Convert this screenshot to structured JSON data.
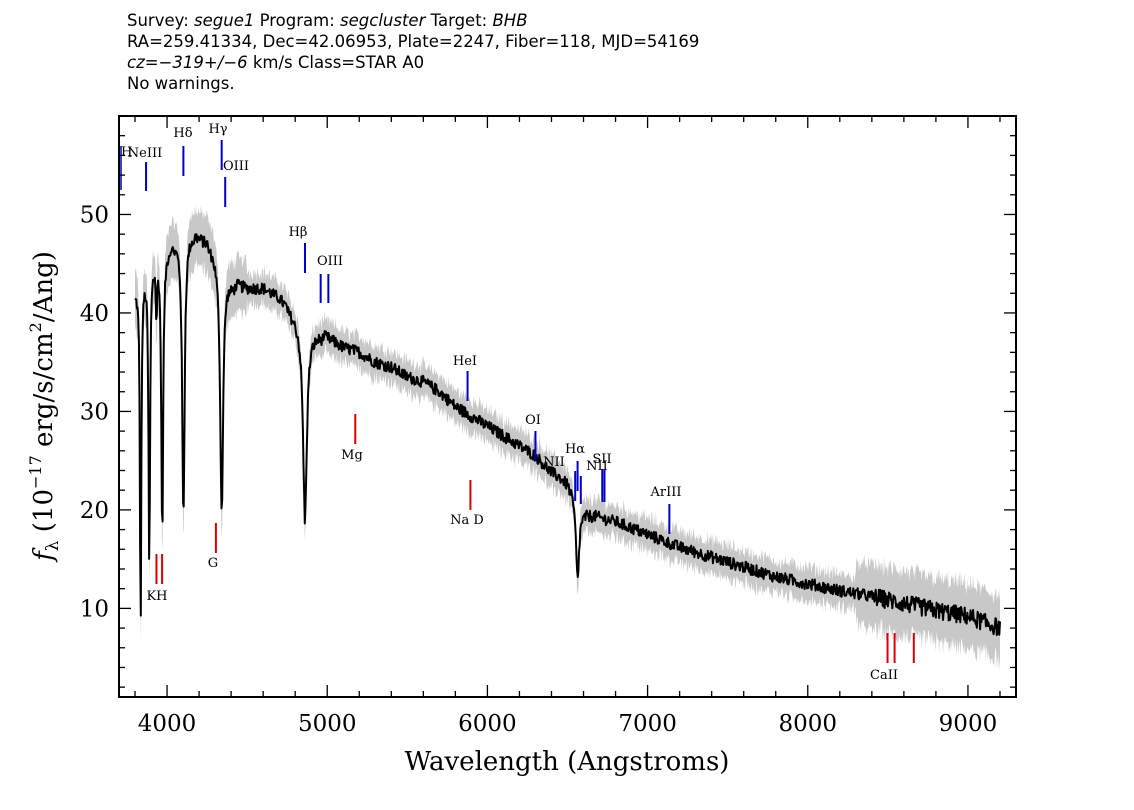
{
  "header": {
    "survey_label": "Survey:",
    "survey": "segue1",
    "program_label": "Program:",
    "program": "segcluster",
    "target_label": "Target:",
    "target": "BHB",
    "line2": "RA=259.41334, Dec=42.06953, Plate=2247, Fiber=118, MJD=54169",
    "cz": "cz=−319+/−6",
    "cz_unit": "km/s",
    "class": "Class=STAR A0",
    "warnings": "No warnings."
  },
  "chart_data": {
    "type": "line",
    "xlabel": "Wavelength (Angstroms)",
    "ylabel": "fλ (10⁻¹⁷ erg/s/cm²/Ang)",
    "xlim": [
      3700,
      9300
    ],
    "ylim": [
      1,
      60
    ],
    "xticks": [
      4000,
      5000,
      6000,
      7000,
      8000,
      9000
    ],
    "yticks": [
      10,
      20,
      30,
      40,
      50
    ],
    "grid": false,
    "legend": "none",
    "colors": {
      "flux": "#000000",
      "error": "#c8c8c8",
      "emission": "#0000cc",
      "absorption": "#dd0000"
    },
    "continuum": [
      [
        3800,
        42
      ],
      [
        3850,
        44
      ],
      [
        3900,
        45.5
      ],
      [
        3950,
        46
      ],
      [
        4000,
        46.5
      ],
      [
        4050,
        47
      ],
      [
        4100,
        48
      ],
      [
        4150,
        48
      ],
      [
        4200,
        47.5
      ],
      [
        4250,
        47
      ],
      [
        4300,
        46
      ],
      [
        4350,
        44.5
      ],
      [
        4400,
        43
      ],
      [
        4500,
        42.5
      ],
      [
        4600,
        42.5
      ],
      [
        4700,
        41.5
      ],
      [
        4800,
        39.5
      ],
      [
        4850,
        38.5
      ],
      [
        4900,
        38
      ],
      [
        5000,
        37.5
      ],
      [
        5100,
        36.5
      ],
      [
        5200,
        36
      ],
      [
        5300,
        35
      ],
      [
        5400,
        34.5
      ],
      [
        5500,
        33.5
      ],
      [
        5600,
        33
      ],
      [
        5700,
        32
      ],
      [
        5800,
        30.5
      ],
      [
        5900,
        29.5
      ],
      [
        6000,
        28.5
      ],
      [
        6100,
        27.5
      ],
      [
        6200,
        26.5
      ],
      [
        6300,
        25.5
      ],
      [
        6400,
        23.8
      ],
      [
        6500,
        22.8
      ],
      [
        6600,
        19.8
      ],
      [
        6700,
        19.2
      ],
      [
        6800,
        18.8
      ],
      [
        7000,
        17.5
      ],
      [
        7200,
        16.2
      ],
      [
        7400,
        15.2
      ],
      [
        7600,
        14.2
      ],
      [
        7800,
        13.2
      ],
      [
        8000,
        12.5
      ],
      [
        8200,
        11.8
      ],
      [
        8400,
        11.2
      ],
      [
        8600,
        10.5
      ],
      [
        8800,
        9.8
      ],
      [
        9000,
        9.2
      ],
      [
        9200,
        8.0
      ]
    ],
    "absorption_features": [
      {
        "center": 3835,
        "depth": 36,
        "width": 5
      },
      {
        "center": 3889,
        "depth": 31,
        "width": 6
      },
      {
        "center": 3934,
        "depth": 6,
        "width": 4
      },
      {
        "center": 3970,
        "depth": 29,
        "width": 7
      },
      {
        "center": 4102,
        "depth": 29,
        "width": 9
      },
      {
        "center": 4341,
        "depth": 25,
        "width": 11
      },
      {
        "center": 4861,
        "depth": 19.5,
        "width": 14
      },
      {
        "center": 6563,
        "depth": 8,
        "width": 12
      }
    ],
    "lines": [
      {
        "label": "Hδ",
        "wavelength": 4102,
        "kind": "emission"
      },
      {
        "label": "Hγ",
        "wavelength": 4341,
        "kind": "emission"
      },
      {
        "label": "NeIII",
        "wavelength": 3869,
        "kind": "emission"
      },
      {
        "label": "OIII",
        "wavelength": 4363,
        "kind": "emission"
      },
      {
        "label": "Hβ",
        "wavelength": 4861,
        "kind": "emission"
      },
      {
        "label": "OIII",
        "wavelength": 4959,
        "kind": "emission"
      },
      {
        "label": "OIII",
        "wavelength": 5007,
        "kind": "emission"
      },
      {
        "label": "HeI",
        "wavelength": 5876,
        "kind": "emission"
      },
      {
        "label": "OI",
        "wavelength": 6300,
        "kind": "emission"
      },
      {
        "label": "NII",
        "wavelength": 6548,
        "kind": "emission"
      },
      {
        "label": "Hα",
        "wavelength": 6563,
        "kind": "emission"
      },
      {
        "label": "NII",
        "wavelength": 6583,
        "kind": "emission"
      },
      {
        "label": "SII",
        "wavelength": 6717,
        "kind": "emission"
      },
      {
        "label": "SII",
        "wavelength": 6731,
        "kind": "emission"
      },
      {
        "label": "ArIII",
        "wavelength": 7136,
        "kind": "emission"
      },
      {
        "label": "K",
        "wavelength": 3934,
        "kind": "absorption"
      },
      {
        "label": "H",
        "wavelength": 3969,
        "kind": "absorption"
      },
      {
        "label": "G",
        "wavelength": 4305,
        "kind": "absorption"
      },
      {
        "label": "Mg",
        "wavelength": 5175,
        "kind": "absorption"
      },
      {
        "label": "Na D",
        "wavelength": 5894,
        "kind": "absorption"
      },
      {
        "label": "CaII",
        "wavelength": 8498,
        "kind": "absorption"
      },
      {
        "label": "CaII",
        "wavelength": 8542,
        "kind": "absorption"
      },
      {
        "label": "CaII",
        "wavelength": 8662,
        "kind": "absorption"
      }
    ]
  }
}
